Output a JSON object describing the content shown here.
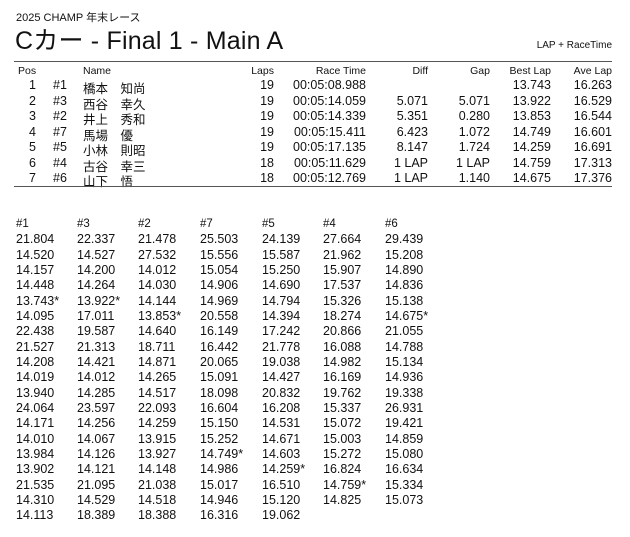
{
  "header": {
    "event": "2025  CHAMP 年末レース",
    "title": "Cカー  -  Final 1  -  Main A",
    "mode": "LAP + RaceTime"
  },
  "results": {
    "columns": [
      "Pos",
      "",
      "Name",
      "Laps",
      "Race Time",
      "Diff",
      "Gap",
      "Best Lap",
      "Ave Lap"
    ],
    "rows": [
      [
        "1",
        "#1",
        "橋本　知尚",
        "19",
        "00:05:08.988",
        "",
        "",
        "13.743",
        "16.263"
      ],
      [
        "2",
        "#3",
        "西谷　幸久",
        "19",
        "00:05:14.059",
        "5.071",
        "5.071",
        "13.922",
        "16.529"
      ],
      [
        "3",
        "#2",
        "井上　秀和",
        "19",
        "00:05:14.339",
        "5.351",
        "0.280",
        "13.853",
        "16.544"
      ],
      [
        "4",
        "#7",
        "馬場　優",
        "19",
        "00:05:15.411",
        "6.423",
        "1.072",
        "14.749",
        "16.601"
      ],
      [
        "5",
        "#5",
        "小林　則昭",
        "19",
        "00:05:17.135",
        "8.147",
        "1.724",
        "14.259",
        "16.691"
      ],
      [
        "6",
        "#4",
        "古谷　幸三",
        "18",
        "00:05:11.629",
        "1 LAP",
        "1 LAP",
        "14.759",
        "17.313"
      ],
      [
        "7",
        "#6",
        "山下　悟",
        "18",
        "00:05:12.769",
        "1 LAP",
        "1.140",
        "14.675",
        "17.376"
      ]
    ]
  },
  "laps": [
    {
      "car": "#1",
      "times": [
        "21.804",
        "14.520",
        "14.157",
        "14.448",
        "13.743*",
        "14.095",
        "22.438",
        "21.527",
        "14.208",
        "14.019",
        "13.940",
        "24.064",
        "14.171",
        "14.010",
        "13.984",
        "13.902",
        "21.535",
        "14.310",
        "14.113"
      ]
    },
    {
      "car": "#3",
      "times": [
        "22.337",
        "14.527",
        "14.200",
        "14.264",
        "13.922*",
        "17.011",
        "19.587",
        "21.313",
        "14.421",
        "14.012",
        "14.285",
        "23.597",
        "14.256",
        "14.067",
        "14.126",
        "14.121",
        "21.095",
        "14.529",
        "18.389"
      ]
    },
    {
      "car": "#2",
      "times": [
        "21.478",
        "27.532",
        "14.012",
        "14.030",
        "14.144",
        "13.853*",
        "14.640",
        "18.711",
        "14.871",
        "14.265",
        "14.517",
        "22.093",
        "14.259",
        "13.915",
        "13.927",
        "14.148",
        "21.038",
        "14.518",
        "18.388"
      ]
    },
    {
      "car": "#7",
      "times": [
        "25.503",
        "15.556",
        "15.054",
        "14.906",
        "14.969",
        "20.558",
        "16.149",
        "16.442",
        "20.065",
        "15.091",
        "18.098",
        "16.604",
        "15.150",
        "15.252",
        "14.749*",
        "14.986",
        "15.017",
        "14.946",
        "16.316"
      ]
    },
    {
      "car": "#5",
      "times": [
        "24.139",
        "15.587",
        "15.250",
        "14.690",
        "14.794",
        "14.394",
        "17.242",
        "21.778",
        "19.038",
        "14.427",
        "20.832",
        "16.208",
        "14.531",
        "14.671",
        "14.603",
        "14.259*",
        "16.510",
        "15.120",
        "19.062"
      ]
    },
    {
      "car": "#4",
      "times": [
        "27.664",
        "21.962",
        "15.907",
        "17.537",
        "15.326",
        "18.274",
        "20.866",
        "16.088",
        "14.982",
        "16.169",
        "19.762",
        "15.337",
        "15.072",
        "15.003",
        "15.272",
        "16.824",
        "14.759*",
        "14.825"
      ]
    },
    {
      "car": "#6",
      "times": [
        "29.439",
        "15.208",
        "14.890",
        "14.836",
        "15.138",
        "14.675*",
        "21.055",
        "14.788",
        "15.134",
        "14.936",
        "19.338",
        "26.931",
        "19.421",
        "14.859",
        "15.080",
        "16.634",
        "15.334",
        "15.073"
      ]
    }
  ]
}
